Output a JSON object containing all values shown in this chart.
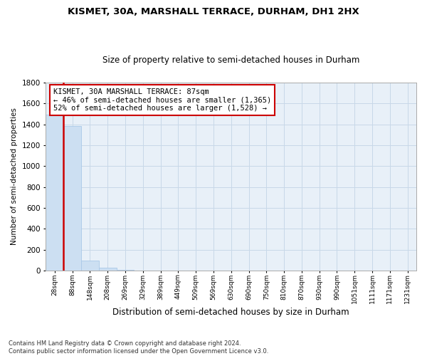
{
  "title": "KISMET, 30A, MARSHALL TERRACE, DURHAM, DH1 2HX",
  "subtitle": "Size of property relative to semi-detached houses in Durham",
  "xlabel": "Distribution of semi-detached houses by size in Durham",
  "ylabel": "Number of semi-detached properties",
  "bin_labels": [
    "28sqm",
    "88sqm",
    "148sqm",
    "208sqm",
    "269sqm",
    "329sqm",
    "389sqm",
    "449sqm",
    "509sqm",
    "569sqm",
    "630sqm",
    "690sqm",
    "750sqm",
    "810sqm",
    "870sqm",
    "930sqm",
    "990sqm",
    "1051sqm",
    "1111sqm",
    "1171sqm",
    "1231sqm"
  ],
  "bar_values": [
    1490,
    1380,
    95,
    25,
    8,
    4,
    3,
    2,
    2,
    1,
    1,
    1,
    1,
    1,
    0,
    0,
    0,
    0,
    0,
    0,
    0
  ],
  "bar_color": "#ccdff2",
  "bar_edge_color": "#aac8e8",
  "property_label": "KISMET, 30A MARSHALL TERRACE: 87sqm",
  "pct_smaller": 46,
  "n_smaller": 1365,
  "pct_larger": 52,
  "n_larger": 1528,
  "annotation_box_color": "#ffffff",
  "annotation_border_color": "#cc0000",
  "red_line_color": "#cc0000",
  "ylim": [
    0,
    1800
  ],
  "yticks": [
    0,
    200,
    400,
    600,
    800,
    1000,
    1200,
    1400,
    1600,
    1800
  ],
  "footer_line1": "Contains HM Land Registry data © Crown copyright and database right 2024.",
  "footer_line2": "Contains public sector information licensed under the Open Government Licence v3.0.",
  "bg_color": "#ffffff",
  "plot_bg_color": "#e8f0f8",
  "grid_color": "#c8d8e8"
}
